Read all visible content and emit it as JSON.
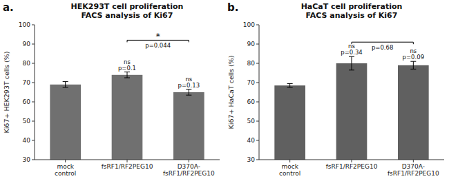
{
  "chart_data": [
    {
      "type": "bar",
      "panel_label": "a.",
      "title": "HEK293T cell proliferation\nFACS analysis of Ki67",
      "y_label": "Ki67+ HEK293T cells (%)",
      "categories": [
        "mock\ncontrol",
        "fsRF1/RF2PEG10",
        "D370A-\nfsRF1/RF2PEG10"
      ],
      "values": [
        69.0,
        74.0,
        65.0
      ],
      "errors": [
        1.5,
        1.5,
        1.5
      ],
      "color": "#707070",
      "ylim": [
        30,
        100
      ],
      "yticks": [
        30,
        40,
        50,
        60,
        70,
        80,
        90,
        100
      ],
      "grid": false,
      "annotations": [
        {
          "category": "fsRF1/RF2PEG10",
          "text": [
            "ns",
            "p=0.1"
          ]
        },
        {
          "category": "D370A-\nfsRF1/RF2PEG10",
          "text": [
            "ns",
            "p=0.13"
          ]
        }
      ],
      "bracket": {
        "from": "fsRF1/RF2PEG10",
        "to": "D370A-\nfsRF1/RF2PEG10",
        "y": 92,
        "text": "p=0.044",
        "star": "*"
      }
    },
    {
      "type": "bar",
      "panel_label": "b.",
      "title": "HaCaT cell proliferation\nFACS analysis of Ki67",
      "y_label": "Ki67+ HaCaT cells (%)",
      "categories": [
        "mock\ncontrol",
        "fsRF1/RF2PEG10",
        "D370A-\nfsRF1/RF2PEG10"
      ],
      "values": [
        68.5,
        80.0,
        79.0
      ],
      "errors": [
        1.0,
        3.5,
        2.0
      ],
      "color": "#606060",
      "ylim": [
        30,
        100
      ],
      "yticks": [
        30,
        40,
        50,
        60,
        70,
        80,
        90,
        100
      ],
      "grid": false,
      "annotations": [
        {
          "category": "fsRF1/RF2PEG10",
          "text": [
            "ns",
            "p=0.34"
          ]
        },
        {
          "category": "D370A-\nfsRF1/RF2PEG10",
          "text": [
            "ns",
            "p=0.09"
          ]
        }
      ],
      "bracket": {
        "from": "fsRF1/RF2PEG10",
        "to": "D370A-\nfsRF1/RF2PEG10",
        "y": 91,
        "text": "p=0.68"
      }
    }
  ]
}
